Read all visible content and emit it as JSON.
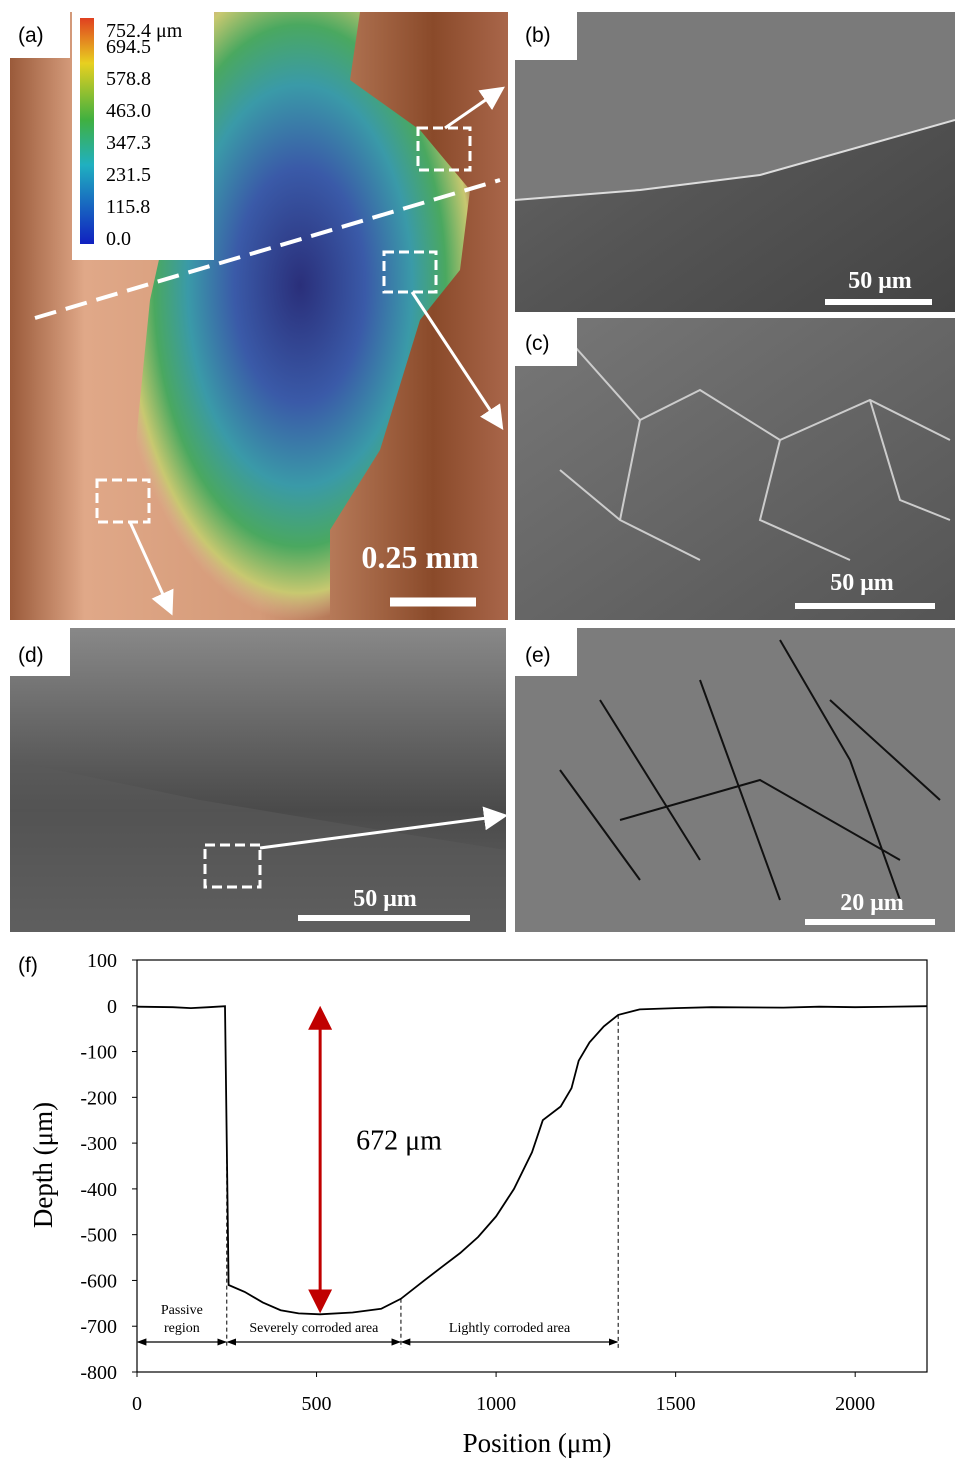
{
  "panels": {
    "a": {
      "label": "(a)",
      "scale_bar": "0.25 mm",
      "colorbar": {
        "ticks": [
          {
            "value": 752.4,
            "label": "752.4 μm"
          },
          {
            "value": 694.5,
            "label": "694.5"
          },
          {
            "value": 578.8,
            "label": "578.8"
          },
          {
            "value": 463.0,
            "label": "463.0"
          },
          {
            "value": 347.3,
            "label": "347.3"
          },
          {
            "value": 231.5,
            "label": "231.5"
          },
          {
            "value": 115.8,
            "label": "115.8"
          },
          {
            "value": 0.0,
            "label": "0.0"
          }
        ]
      }
    },
    "b": {
      "label": "(b)",
      "scale_bar": "50 μm"
    },
    "c": {
      "label": "(c)",
      "scale_bar": "50 μm"
    },
    "d": {
      "label": "(d)",
      "scale_bar": "50 μm"
    },
    "e": {
      "label": "(e)",
      "scale_bar": "20 μm"
    }
  },
  "chart_data": {
    "type": "line",
    "panel_label": "(f)",
    "xlabel": "Position (μm)",
    "ylabel": "Depth (μm)",
    "xlim": [
      0,
      2200
    ],
    "ylim": [
      -800,
      100
    ],
    "xticks": [
      0,
      500,
      1000,
      1500,
      2000
    ],
    "yticks": [
      100,
      0,
      -100,
      -200,
      -300,
      -400,
      -500,
      -600,
      -700,
      -800
    ],
    "color": "#000000",
    "x": [
      0,
      100,
      150,
      200,
      245,
      255,
      300,
      350,
      400,
      450,
      510,
      600,
      680,
      735,
      800,
      850,
      900,
      950,
      1000,
      1050,
      1100,
      1130,
      1180,
      1210,
      1230,
      1260,
      1300,
      1340,
      1400,
      1500,
      1600,
      1800,
      1900,
      2000,
      2200
    ],
    "values": [
      -2,
      -3,
      -5,
      -3,
      -1,
      -610,
      -625,
      -648,
      -665,
      -672,
      -674,
      -670,
      -662,
      -640,
      -600,
      -570,
      -540,
      -505,
      -460,
      -400,
      -320,
      -250,
      -220,
      -180,
      -120,
      -80,
      -45,
      -20,
      -8,
      -5,
      -3,
      -4,
      -2,
      -3,
      -1
    ],
    "depth_annotation": {
      "text": "672 μm",
      "x": 510,
      "y_start": 0,
      "y_end": -672,
      "color": "#c00000"
    },
    "regions": [
      {
        "text_lines": [
          "Passive",
          "region"
        ],
        "x_start": 0,
        "x_end": 250
      },
      {
        "text_lines": [
          "Severely corroded area"
        ],
        "x_start": 250,
        "x_end": 735
      },
      {
        "text_lines": [
          "Lightly corroded area"
        ],
        "x_start": 735,
        "x_end": 1340
      }
    ]
  }
}
